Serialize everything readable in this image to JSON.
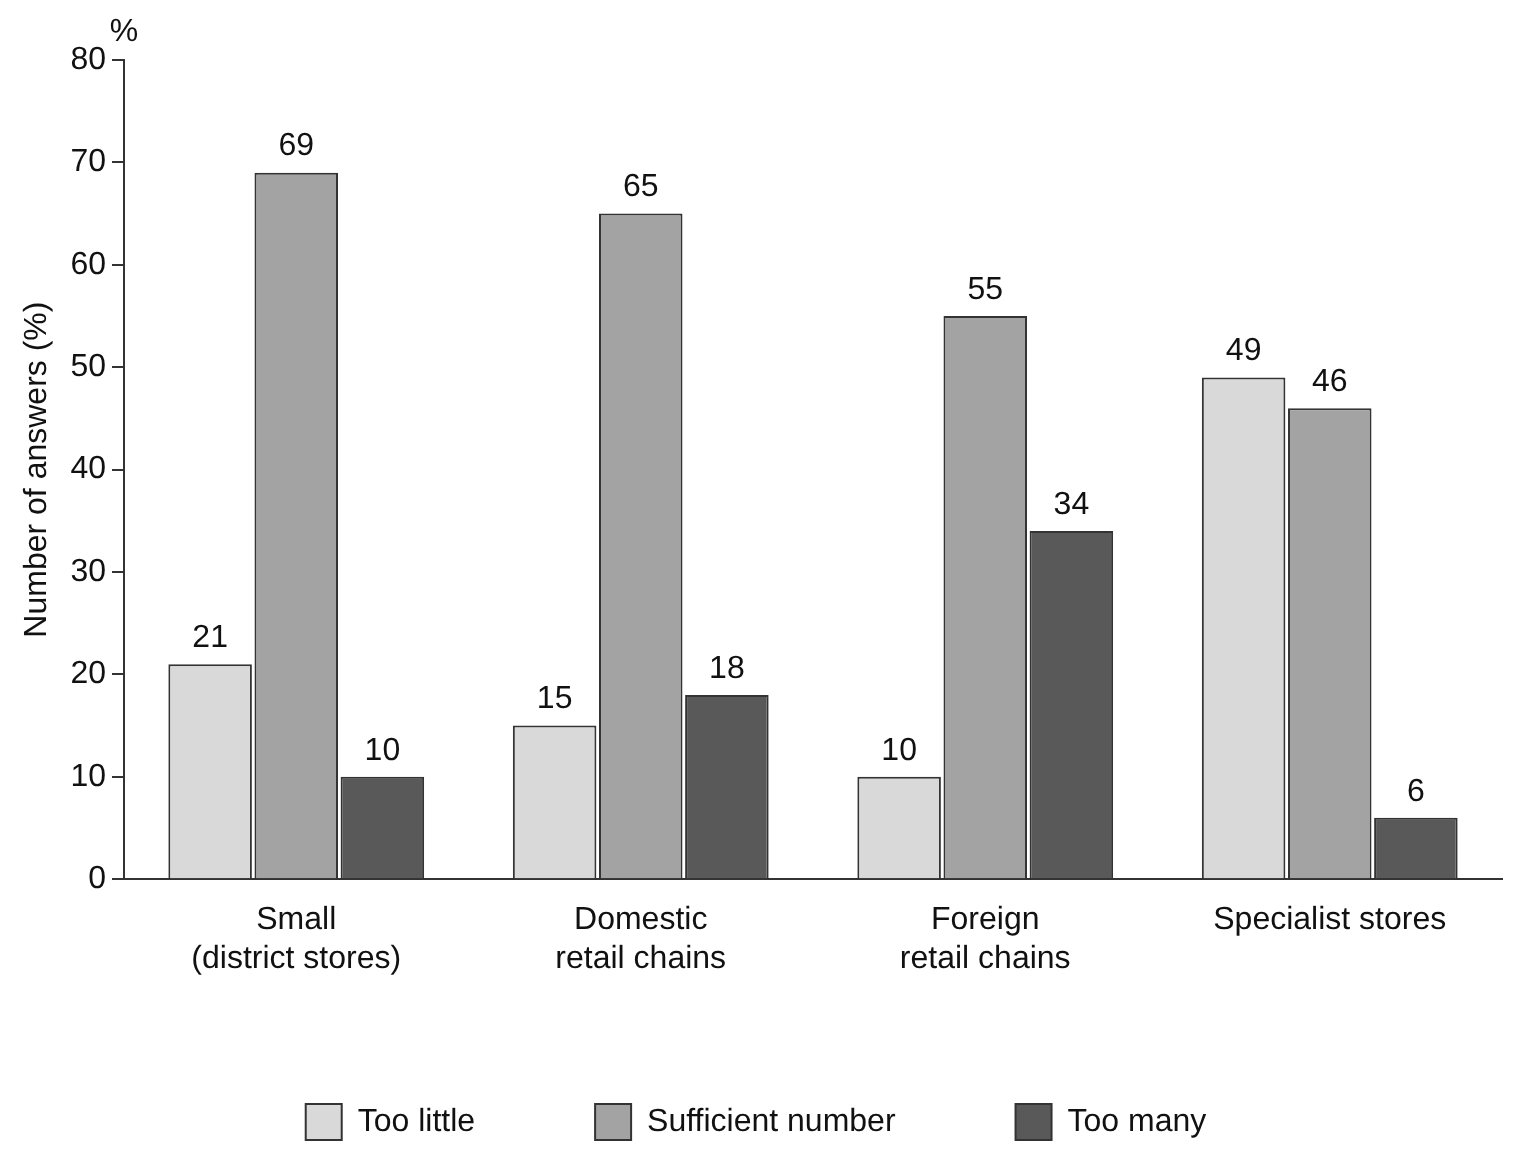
{
  "chart_data": {
    "type": "bar",
    "ylabel": "Number of answers (%)",
    "categories": [
      "Small\n(district stores)",
      "Domestic\nretail chains",
      "Foreign\nretail chains",
      "Specialist stores"
    ],
    "series": [
      {
        "name": "Too little",
        "color": "#d9d9d9",
        "values": [
          21,
          15,
          10,
          49
        ]
      },
      {
        "name": "Sufficient number",
        "color": "#a3a3a3",
        "values": [
          69,
          65,
          55,
          46
        ]
      },
      {
        "name": "Too many",
        "color": "#595959",
        "values": [
          10,
          18,
          34,
          6
        ]
      }
    ],
    "ylim": [
      0,
      80
    ],
    "yticks": [
      0,
      10,
      20,
      30,
      40,
      50,
      60,
      70,
      80
    ],
    "data_labels": true,
    "legend": "bottom",
    "annotations": [
      "%"
    ]
  }
}
